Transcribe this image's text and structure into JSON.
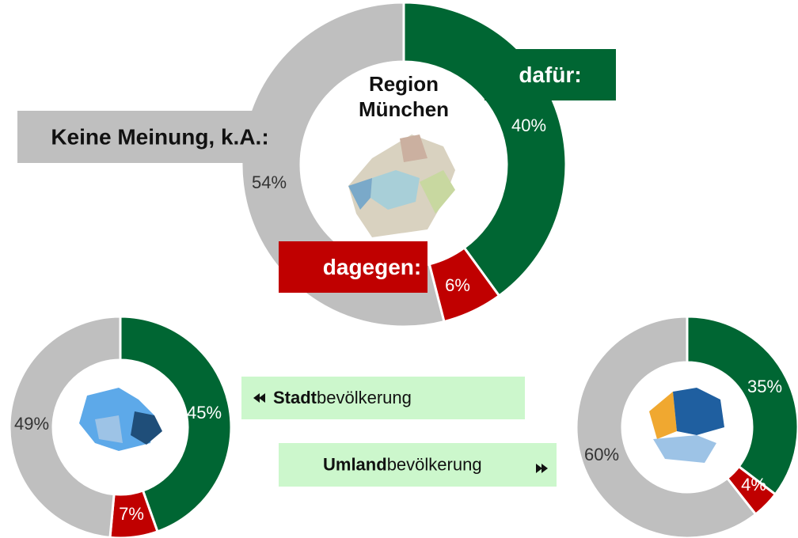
{
  "chart_data": [
    {
      "type": "donut",
      "title": "Region München",
      "categories": [
        "dafür:",
        "dagegen:",
        "Keine Meinung, k.A.:"
      ],
      "values": [
        40,
        6,
        54
      ],
      "value_labels": [
        "40%",
        "6%",
        "54%"
      ],
      "colors": [
        "#006633",
        "#c00000",
        "#bfbfbf"
      ]
    },
    {
      "type": "donut",
      "values": [
        45,
        7,
        49
      ],
      "value_labels": [
        "45%",
        "7%",
        "49%"
      ],
      "colors": [
        "#006633",
        "#c00000",
        "#bfbfbf"
      ]
    },
    {
      "type": "donut",
      "values": [
        35,
        4,
        60
      ],
      "value_labels": [
        "35%",
        "4%",
        "60%"
      ],
      "colors": [
        "#006633",
        "#c00000",
        "#bfbfbf"
      ]
    }
  ],
  "legend_boxes": [
    {
      "bold": "Stadt",
      "text": "bevölkerung"
    },
    {
      "bold": "Umland",
      "text": "bevölkerung"
    }
  ]
}
